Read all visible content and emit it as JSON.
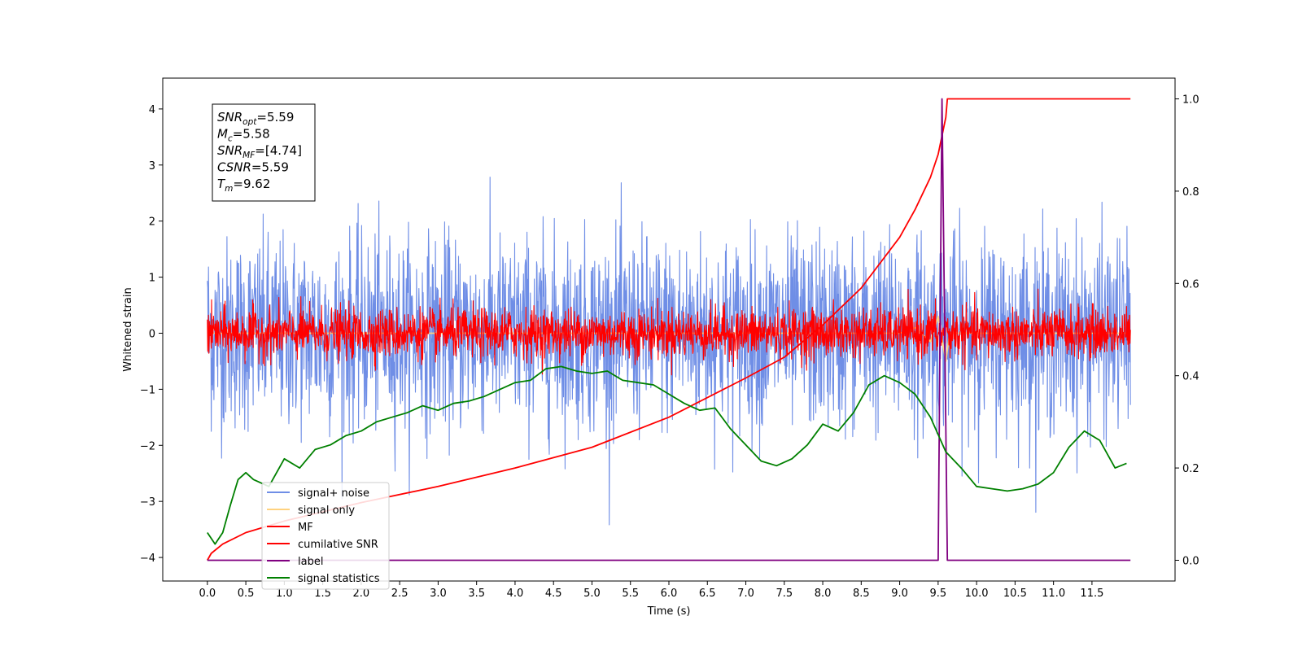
{
  "chart_data": {
    "type": "line",
    "xlabel": "Time (s)",
    "ylabel": "Whitened strain",
    "xlim": [
      -0.58,
      12.58
    ],
    "ylim": [
      -4.42,
      4.55
    ],
    "ylim_right": [
      -0.045,
      1.045
    ],
    "x_ticks": [
      "0.0",
      "0.5",
      "1.0",
      "1.5",
      "2.0",
      "2.5",
      "3.0",
      "3.5",
      "4.0",
      "4.5",
      "5.0",
      "5.5",
      "6.0",
      "6.5",
      "7.0",
      "7.5",
      "8.0",
      "8.5",
      "9.0",
      "9.5",
      "10.0",
      "10.5",
      "11.0",
      "11.5"
    ],
    "y_ticks": [
      "4",
      "3",
      "2",
      "1",
      "0",
      "−1",
      "−2",
      "−3",
      "−4"
    ],
    "y_ticks_right": [
      "1.0",
      "0.8",
      "0.6",
      "0.4",
      "0.2",
      "0.0"
    ],
    "annotation": [
      {
        "name": "SNR",
        "sub": "opt",
        "value": "=5.59"
      },
      {
        "name": "M",
        "sub": "c",
        "value": "=5.58"
      },
      {
        "name": "SNR",
        "sub": "MF",
        "value": "=[4.74]"
      },
      {
        "name": "CSNR",
        "sub": "",
        "value": "=5.59"
      },
      {
        "name": "T",
        "sub": "m",
        "value": "=9.62"
      }
    ],
    "legend": {
      "placement": "lower-left",
      "entries": [
        {
          "label": "signal+ noise",
          "color": "#6f8ee6"
        },
        {
          "label": "signal only",
          "color": "#ffd27f"
        },
        {
          "label": "MF",
          "color": "#ff0000"
        },
        {
          "label": "cumilative SNR",
          "color": "#ff0000"
        },
        {
          "label": "label",
          "color": "#800080"
        },
        {
          "label": "signal statistics",
          "color": "#008000"
        }
      ]
    },
    "series": [
      {
        "name": "signal+ noise",
        "axis": "left",
        "color": "#6f8ee6",
        "noise_sigma": 0.85,
        "x_range": [
          0,
          12.0
        ]
      },
      {
        "name": "signal only",
        "axis": "left",
        "color": "#ffd27f",
        "x": [
          0,
          9.0,
          9.2,
          9.4,
          9.5,
          9.6,
          9.65,
          12.0
        ],
        "y": [
          0,
          0,
          0.1,
          -0.15,
          0.3,
          -0.5,
          0,
          0
        ]
      },
      {
        "name": "MF",
        "axis": "left",
        "color": "#ff0000",
        "noise_sigma": 0.22,
        "x_range": [
          0,
          12.0
        ]
      },
      {
        "name": "cumilative SNR",
        "axis": "right",
        "color": "#ff0000",
        "x": [
          0,
          0.05,
          0.2,
          0.5,
          1.0,
          1.5,
          2.0,
          3.0,
          4.0,
          5.0,
          6.0,
          7.0,
          7.5,
          8.0,
          8.5,
          9.0,
          9.2,
          9.4,
          9.5,
          9.55,
          9.6,
          9.62,
          12.0
        ],
        "y": [
          0.0,
          0.015,
          0.035,
          0.06,
          0.085,
          0.105,
          0.125,
          0.16,
          0.2,
          0.245,
          0.31,
          0.395,
          0.44,
          0.51,
          0.59,
          0.7,
          0.76,
          0.83,
          0.88,
          0.92,
          0.96,
          1.0,
          1.0
        ]
      },
      {
        "name": "label",
        "axis": "right",
        "color": "#800080",
        "x": [
          0,
          9.5,
          9.55,
          9.62,
          12.0
        ],
        "y": [
          0,
          0,
          1.0,
          0,
          0
        ]
      },
      {
        "name": "signal statistics",
        "axis": "right",
        "color": "#008000",
        "x": [
          0,
          0.1,
          0.2,
          0.3,
          0.4,
          0.5,
          0.6,
          0.8,
          1.0,
          1.2,
          1.4,
          1.6,
          1.8,
          2.0,
          2.2,
          2.4,
          2.6,
          2.8,
          3.0,
          3.2,
          3.4,
          3.6,
          3.8,
          4.0,
          4.2,
          4.4,
          4.6,
          4.8,
          5.0,
          5.2,
          5.4,
          5.6,
          5.8,
          6.0,
          6.2,
          6.4,
          6.6,
          6.8,
          7.0,
          7.2,
          7.4,
          7.6,
          7.8,
          8.0,
          8.2,
          8.4,
          8.6,
          8.8,
          9.0,
          9.2,
          9.4,
          9.6,
          9.8,
          10.0,
          10.2,
          10.4,
          10.6,
          10.8,
          11.0,
          11.2,
          11.4,
          11.6,
          11.8,
          11.95
        ],
        "y": [
          0.06,
          0.035,
          0.06,
          0.12,
          0.175,
          0.19,
          0.175,
          0.16,
          0.22,
          0.2,
          0.24,
          0.25,
          0.27,
          0.28,
          0.3,
          0.31,
          0.32,
          0.335,
          0.325,
          0.34,
          0.345,
          0.355,
          0.37,
          0.385,
          0.39,
          0.415,
          0.42,
          0.41,
          0.405,
          0.41,
          0.39,
          0.385,
          0.38,
          0.36,
          0.34,
          0.325,
          0.33,
          0.285,
          0.25,
          0.215,
          0.205,
          0.22,
          0.25,
          0.295,
          0.28,
          0.32,
          0.38,
          0.4,
          0.385,
          0.36,
          0.31,
          0.235,
          0.2,
          0.16,
          0.155,
          0.15,
          0.155,
          0.165,
          0.19,
          0.245,
          0.28,
          0.26,
          0.2,
          0.21
        ]
      }
    ]
  }
}
